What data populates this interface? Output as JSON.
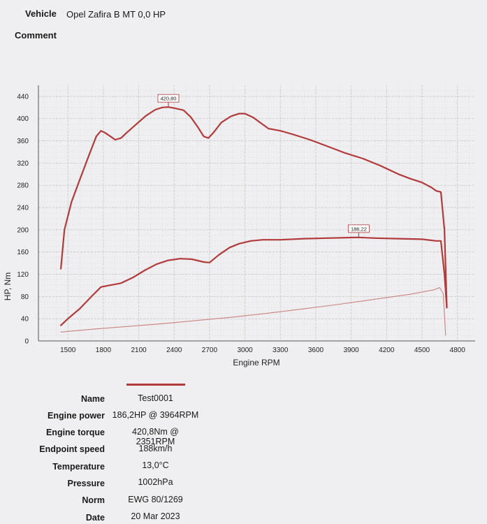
{
  "header": {
    "vehicle_label": "Vehicle",
    "vehicle_value": "Opel Zafira B MT 0,0 HP",
    "comment_label": "Comment"
  },
  "colors": {
    "curve": "#b33a3a",
    "curve_light": "#c9837d",
    "grid": "#c8c8c8"
  },
  "chart_data": {
    "type": "line",
    "xlabel": "Engine RPM",
    "ylabel": "HP, Nm",
    "xlim": [
      1250,
      4950
    ],
    "ylim": [
      0,
      460
    ],
    "x_ticks": [
      1500,
      1800,
      2100,
      2400,
      2700,
      3000,
      3300,
      3600,
      3900,
      4200,
      4500,
      4800
    ],
    "y_ticks": [
      0,
      40,
      80,
      120,
      160,
      200,
      240,
      280,
      320,
      360,
      400,
      440
    ],
    "grid": true,
    "series": [
      {
        "role": "torque",
        "style": "thick",
        "x": [
          1440,
          1470,
          1530,
          1600,
          1680,
          1740,
          1780,
          1810,
          1860,
          1900,
          1950,
          2000,
          2080,
          2160,
          2240,
          2300,
          2351,
          2420,
          2480,
          2540,
          2600,
          2650,
          2690,
          2730,
          2800,
          2880,
          2950,
          3000,
          3070,
          3140,
          3200,
          3300,
          3400,
          3550,
          3700,
          3850,
          4000,
          4150,
          4300,
          4400,
          4500,
          4580,
          4620,
          4660,
          4690,
          4710
        ],
        "y": [
          130,
          200,
          250,
          290,
          335,
          368,
          378,
          375,
          368,
          362,
          365,
          375,
          390,
          405,
          416,
          420,
          420.8,
          418,
          415,
          403,
          385,
          368,
          365,
          374,
          393,
          404,
          409,
          409,
          402,
          391,
          382,
          378,
          372,
          362,
          350,
          338,
          328,
          315,
          300,
          292,
          285,
          276,
          270,
          268,
          200,
          60
        ]
      },
      {
        "role": "power",
        "style": "thick",
        "x": [
          1440,
          1500,
          1600,
          1700,
          1780,
          1850,
          1950,
          2050,
          2150,
          2250,
          2350,
          2450,
          2550,
          2650,
          2700,
          2780,
          2870,
          2950,
          3050,
          3150,
          3300,
          3500,
          3700,
          3900,
          3964,
          4100,
          4300,
          4500,
          4620,
          4660,
          4690,
          4710
        ],
        "y": [
          28,
          40,
          58,
          80,
          97,
          100,
          104,
          114,
          127,
          138,
          145,
          148,
          147,
          142,
          141,
          155,
          168,
          175,
          180,
          182,
          182,
          184,
          185,
          186,
          186.22,
          185,
          184,
          183,
          180,
          180,
          120,
          60
        ]
      },
      {
        "role": "loss",
        "style": "thin",
        "x": [
          1440,
          1700,
          2000,
          2300,
          2600,
          2900,
          3200,
          3500,
          3800,
          4100,
          4400,
          4600,
          4650,
          4680,
          4700
        ],
        "y": [
          16,
          21,
          26,
          31,
          37,
          43,
          50,
          58,
          66,
          75,
          84,
          92,
          96,
          85,
          10
        ]
      }
    ],
    "annotations": [
      {
        "text": "420,80",
        "x": 2351,
        "y": 420.8
      },
      {
        "text": "186,22",
        "x": 3964,
        "y": 186.22
      }
    ]
  },
  "details": {
    "name": {
      "label": "Name",
      "value": "Test0001"
    },
    "power": {
      "label": "Engine power",
      "value": "186,2HP @ 3964RPM"
    },
    "torque": {
      "label": "Engine torque",
      "value": "420,8Nm @ 2351RPM"
    },
    "speed": {
      "label": "Endpoint speed",
      "value": "188km/h"
    },
    "temperature": {
      "label": "Temperature",
      "value": "13,0°C"
    },
    "pressure": {
      "label": "Pressure",
      "value": "1002hPa"
    },
    "norm": {
      "label": "Norm",
      "value": "EWG 80/1269"
    },
    "date": {
      "label": "Date",
      "value": "20 Mar 2023"
    }
  }
}
